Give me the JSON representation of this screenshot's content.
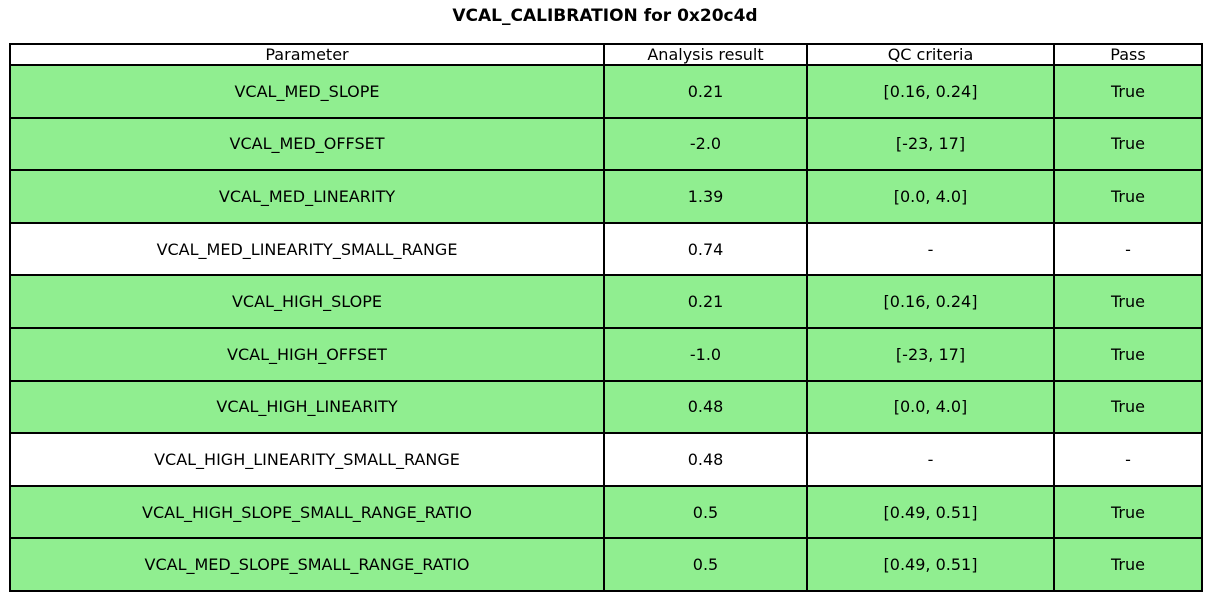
{
  "title": "VCAL_CALIBRATION for 0x20c4d",
  "table": {
    "headers": [
      "Parameter",
      "Analysis result",
      "QC criteria",
      "Pass"
    ],
    "rows": [
      {
        "param": "VCAL_MED_SLOPE",
        "result": "0.21",
        "qc": "[0.16, 0.24]",
        "pass": "True",
        "row_class": "row-pass"
      },
      {
        "param": "VCAL_MED_OFFSET",
        "result": "-2.0",
        "qc": "[-23, 17]",
        "pass": "True",
        "row_class": "row-pass"
      },
      {
        "param": "VCAL_MED_LINEARITY",
        "result": "1.39",
        "qc": "[0.0, 4.0]",
        "pass": "True",
        "row_class": "row-pass"
      },
      {
        "param": "VCAL_MED_LINEARITY_SMALL_RANGE",
        "result": "0.74",
        "qc": "-",
        "pass": "-",
        "row_class": "row-neutral"
      },
      {
        "param": "VCAL_HIGH_SLOPE",
        "result": "0.21",
        "qc": "[0.16, 0.24]",
        "pass": "True",
        "row_class": "row-pass"
      },
      {
        "param": "VCAL_HIGH_OFFSET",
        "result": "-1.0",
        "qc": "[-23, 17]",
        "pass": "True",
        "row_class": "row-pass"
      },
      {
        "param": "VCAL_HIGH_LINEARITY",
        "result": "0.48",
        "qc": "[0.0, 4.0]",
        "pass": "True",
        "row_class": "row-pass"
      },
      {
        "param": "VCAL_HIGH_LINEARITY_SMALL_RANGE",
        "result": "0.48",
        "qc": "-",
        "pass": "-",
        "row_class": "row-neutral"
      },
      {
        "param": "VCAL_HIGH_SLOPE_SMALL_RANGE_RATIO",
        "result": "0.5",
        "qc": "[0.49, 0.51]",
        "pass": "True",
        "row_class": "row-pass"
      },
      {
        "param": "VCAL_MED_SLOPE_SMALL_RANGE_RATIO",
        "result": "0.5",
        "qc": "[0.49, 0.51]",
        "pass": "True",
        "row_class": "row-pass"
      }
    ]
  },
  "colors": {
    "pass_row_green": "#90EE90",
    "neutral_row_white": "#ffffff",
    "border_black": "#000000",
    "background": "#ffffff",
    "text": "#000000"
  },
  "chart_data": {
    "type": "table",
    "title": "VCAL_CALIBRATION for 0x20c4d",
    "columns": [
      "Parameter",
      "Analysis result",
      "QC criteria",
      "Pass"
    ],
    "rows": [
      [
        "VCAL_MED_SLOPE",
        "0.21",
        "[0.16, 0.24]",
        "True"
      ],
      [
        "VCAL_MED_OFFSET",
        "-2.0",
        "[-23, 17]",
        "True"
      ],
      [
        "VCAL_MED_LINEARITY",
        "1.39",
        "[0.0, 4.0]",
        "True"
      ],
      [
        "VCAL_MED_LINEARITY_SMALL_RANGE",
        "0.74",
        "-",
        "-"
      ],
      [
        "VCAL_HIGH_SLOPE",
        "0.21",
        "[0.16, 0.24]",
        "True"
      ],
      [
        "VCAL_HIGH_OFFSET",
        "-1.0",
        "[-23, 17]",
        "True"
      ],
      [
        "VCAL_HIGH_LINEARITY",
        "0.48",
        "[0.0, 4.0]",
        "True"
      ],
      [
        "VCAL_HIGH_LINEARITY_SMALL_RANGE",
        "0.48",
        "-",
        "-"
      ],
      [
        "VCAL_HIGH_SLOPE_SMALL_RANGE_RATIO",
        "0.5",
        "[0.49, 0.51]",
        "True"
      ],
      [
        "VCAL_MED_SLOPE_SMALL_RANGE_RATIO",
        "0.5",
        "[0.49, 0.51]",
        "True"
      ]
    ],
    "row_highlight": [
      "green",
      "green",
      "green",
      "white",
      "green",
      "green",
      "green",
      "white",
      "green",
      "green"
    ],
    "layout_hints": {
      "header_background": "white",
      "cell_text_align": "center",
      "grid": "all-borders"
    }
  }
}
